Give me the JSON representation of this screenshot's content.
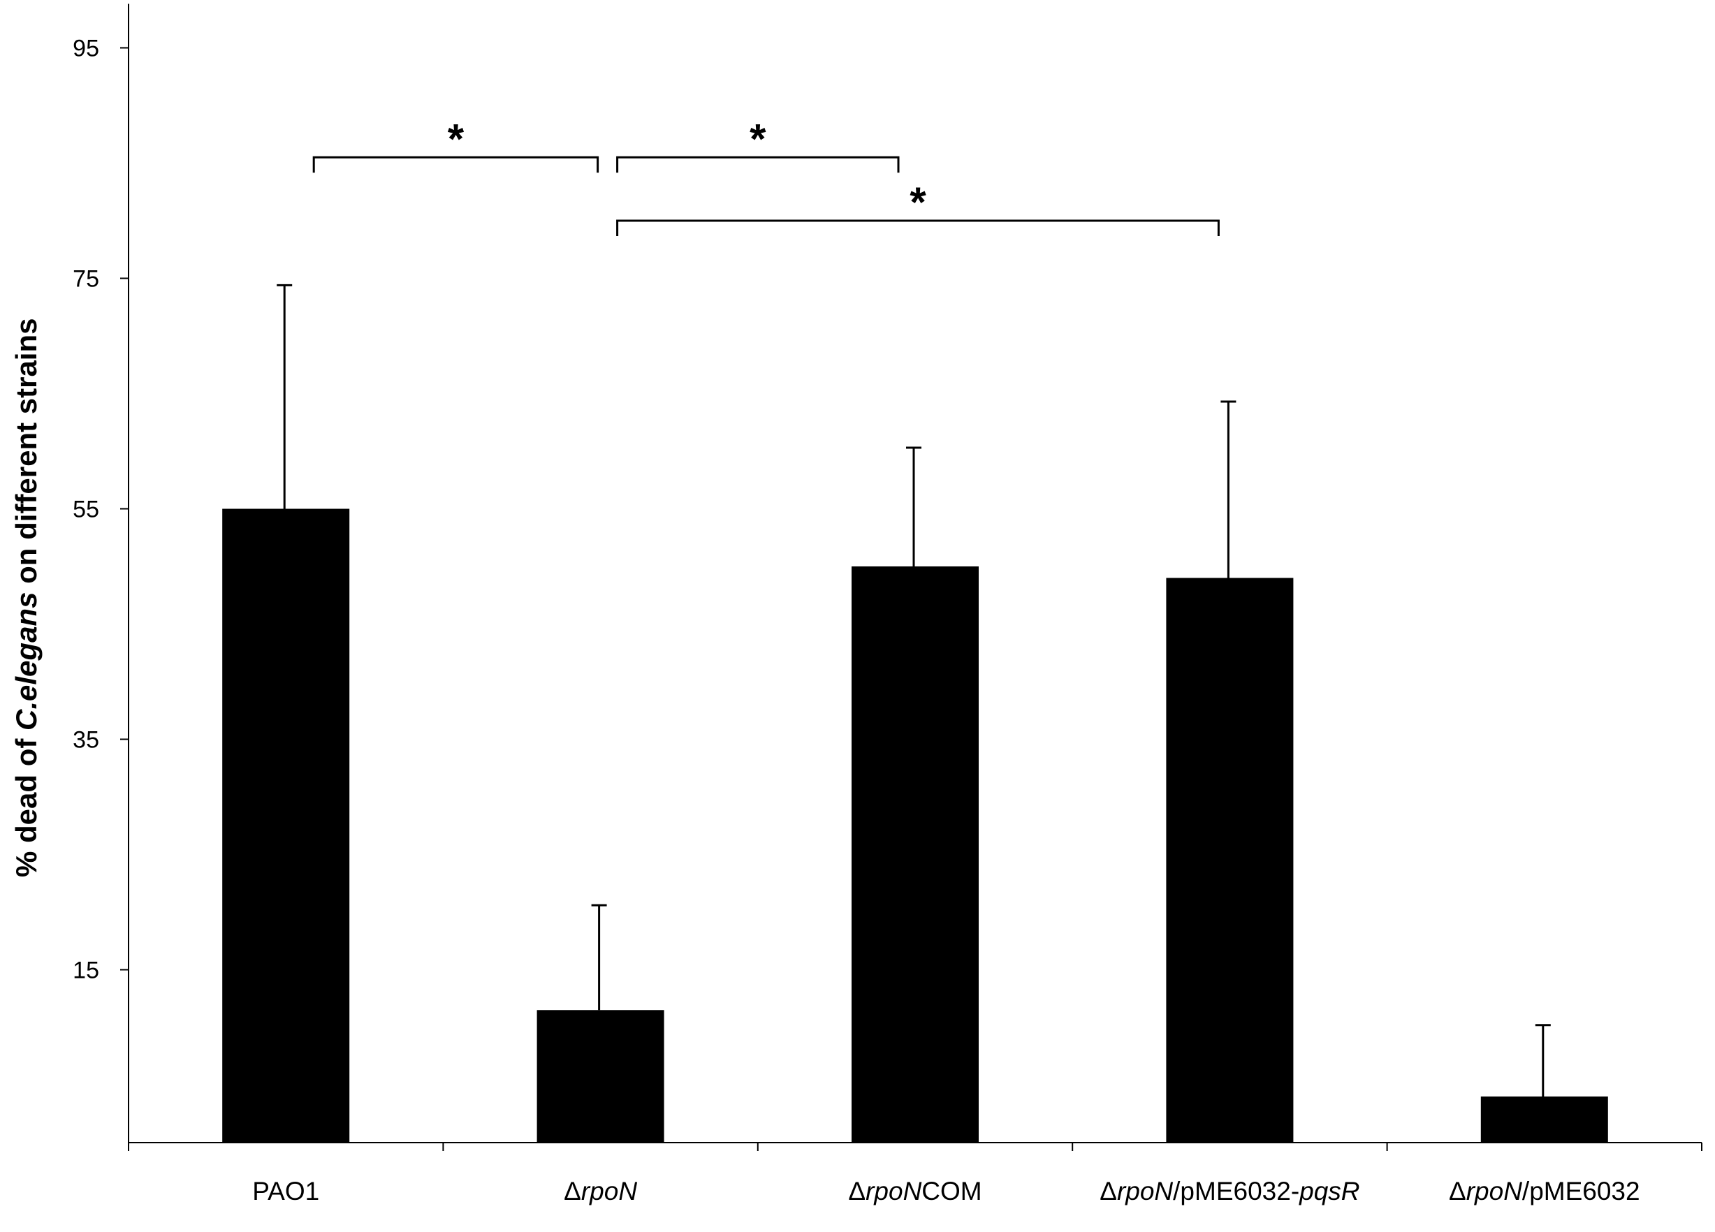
{
  "chart_data": {
    "type": "bar",
    "ylabel_parts": [
      {
        "text": "% dead of ",
        "italic": false
      },
      {
        "text": "C.elegans",
        "italic": true
      },
      {
        "text": " on different strains",
        "italic": false
      }
    ],
    "xlabel": "",
    "yticks": [
      15,
      35,
      55,
      75,
      95
    ],
    "ylim": [
      0,
      97
    ],
    "grid": false,
    "legend": "none",
    "bar_color": "#000000",
    "categories": [
      [
        {
          "text": "PAO1",
          "italic": false
        }
      ],
      [
        {
          "text": "Δ",
          "italic": false
        },
        {
          "text": "rpoN",
          "italic": true
        }
      ],
      [
        {
          "text": "Δ",
          "italic": false
        },
        {
          "text": "rpoN",
          "italic": true
        },
        {
          "text": "COM",
          "italic": false
        }
      ],
      [
        {
          "text": "Δ",
          "italic": false
        },
        {
          "text": "rpoN",
          "italic": true
        },
        {
          "text": "/pME6032-",
          "italic": false
        },
        {
          "text": "pqsR",
          "italic": true
        }
      ],
      [
        {
          "text": "Δ",
          "italic": false
        },
        {
          "text": "rpoN",
          "italic": true
        },
        {
          "text": "/pME6032",
          "italic": false
        }
      ]
    ],
    "values": [
      55,
      11.5,
      50,
      49,
      4
    ],
    "error_upper": [
      19.4,
      9.1,
      10.3,
      15.3,
      6.2
    ],
    "significance": [
      {
        "from": 0,
        "to": 1,
        "label": "*",
        "level": 85.5
      },
      {
        "from": 1,
        "to": 2,
        "label": "*",
        "level": 85.5
      },
      {
        "from": 1,
        "to": 3,
        "label": "*",
        "level": 80
      }
    ]
  }
}
